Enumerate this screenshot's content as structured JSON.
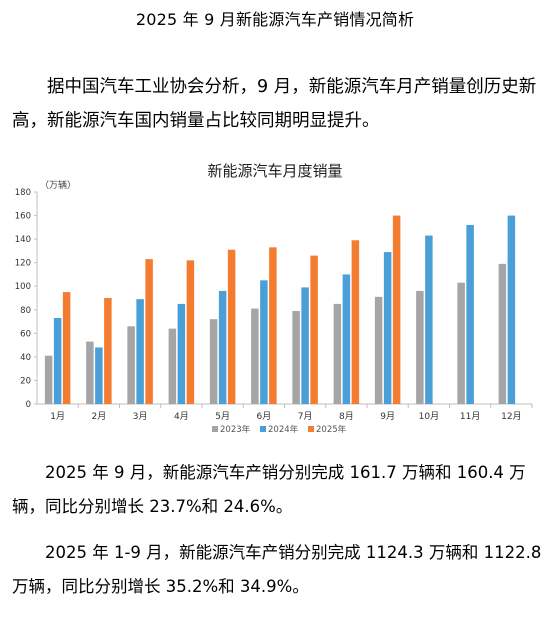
{
  "document": {
    "title": "2025 年 9 月新能源汽车产销情况简析",
    "intro": "据中国汽车工业协会分析，9 月，新能源汽车月产销量创历史新高，新能源汽车国内销量占比较同期明显提升。",
    "para1": "2025 年 9 月，新能源汽车产销分别完成 161.7 万辆和 160.4 万辆，同比分别增长 23.7%和 24.6%。",
    "para2": "2025 年 1-9 月，新能源汽车产销分别完成 1124.3 万辆和 1122.8 万辆，同比分别增长 35.2%和 34.9%。"
  },
  "chart_data": {
    "type": "bar",
    "title": "新能源汽车月度销量",
    "ylabel": "（万辆）",
    "ylim": [
      0,
      180
    ],
    "yticks": [
      0,
      20,
      40,
      60,
      80,
      100,
      120,
      140,
      160,
      180
    ],
    "categories": [
      "1月",
      "2月",
      "3月",
      "4月",
      "5月",
      "6月",
      "7月",
      "8月",
      "9月",
      "10月",
      "11月",
      "12月"
    ],
    "legend_position": "bottom",
    "series": [
      {
        "name": "2023年",
        "color": "#a5a5a5",
        "values": [
          41,
          53,
          66,
          64,
          72,
          81,
          79,
          85,
          91,
          96,
          103,
          119
        ]
      },
      {
        "name": "2024年",
        "color": "#4a9fd8",
        "values": [
          73,
          48,
          89,
          85,
          96,
          105,
          99,
          110,
          129,
          143,
          152,
          160
        ]
      },
      {
        "name": "2025年",
        "color": "#f47c30",
        "values": [
          95,
          90,
          123,
          122,
          131,
          133,
          126,
          139,
          160,
          null,
          null,
          null
        ]
      }
    ]
  }
}
